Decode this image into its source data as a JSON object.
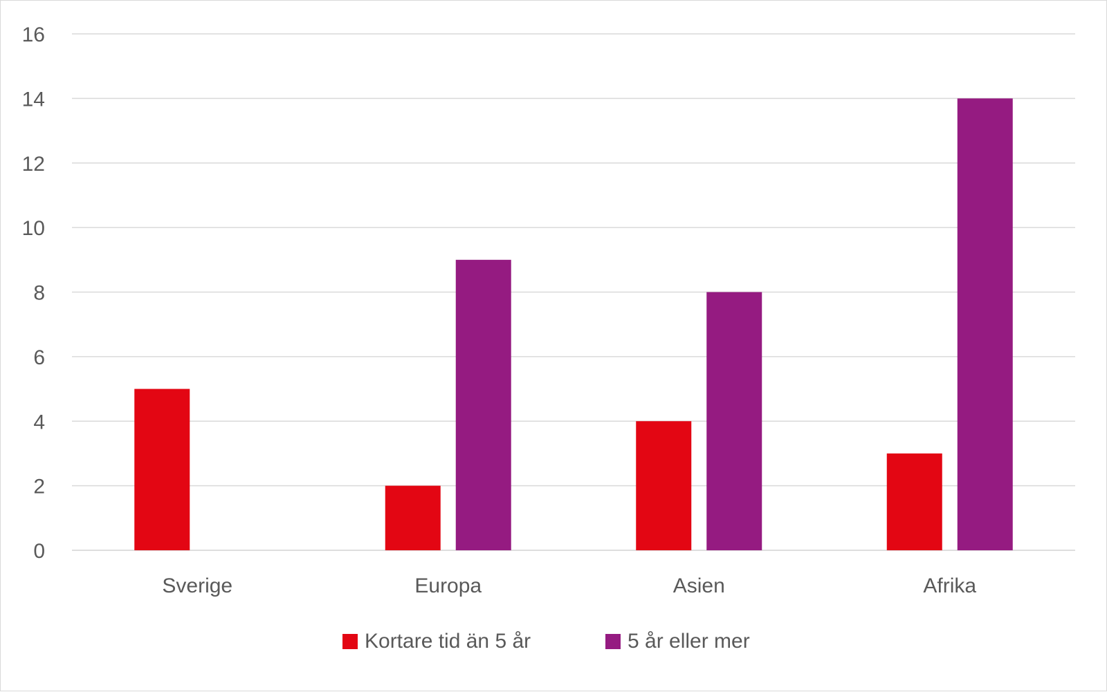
{
  "chart_data": {
    "type": "bar",
    "categories": [
      "Sverige",
      "Europa",
      "Asien",
      "Afrika"
    ],
    "series": [
      {
        "name": "Kortare tid än 5 år",
        "values": [
          5,
          2,
          4,
          3
        ],
        "color": "#e30613"
      },
      {
        "name": "5 år eller mer",
        "values": [
          0,
          9,
          8,
          14
        ],
        "color": "#951b81"
      }
    ],
    "ylim": [
      0,
      16
    ],
    "yticks": [
      "0",
      "2",
      "4",
      "6",
      "8",
      "10",
      "12",
      "14",
      "16"
    ],
    "grid": true,
    "gridline_color": "#d9d9d9",
    "legend_position": "bottom",
    "title": "",
    "xlabel": "",
    "ylabel": ""
  }
}
